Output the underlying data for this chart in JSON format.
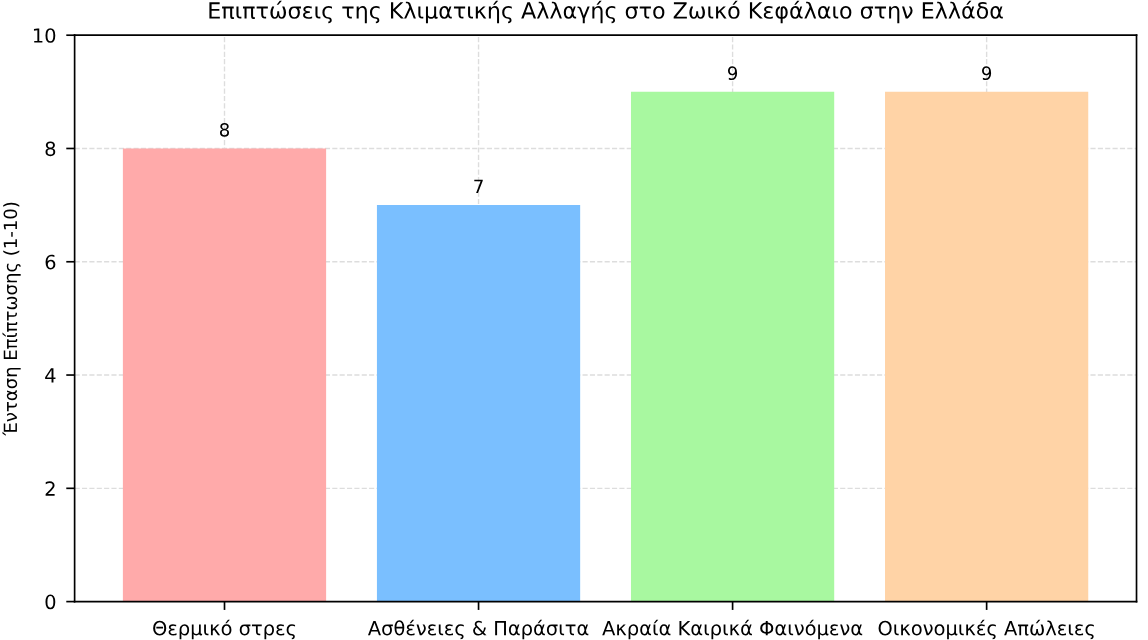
{
  "chart_data": {
    "type": "bar",
    "title": "Επιπτώσεις της Κλιματικής Αλλαγής στο Ζωικό Κεφάλαιο στην Ελλάδα",
    "ylabel": "Ένταση Επίπτωσης (1-10)",
    "categories": [
      "Θερμικό στρες",
      "Ασθένειες & Παράσιτα",
      "Ακραία Καιρικά Φαινόμενα",
      "Οικονομικές Απώλειες"
    ],
    "values": [
      8,
      7,
      9,
      9
    ],
    "colors": [
      "#ffaaaa",
      "#7abfff",
      "#a8f8a0",
      "#ffd3a6"
    ],
    "ylim": [
      0,
      10
    ],
    "yticks": [
      0,
      2,
      4,
      6,
      8,
      10
    ],
    "grid": true,
    "data_labels": true
  }
}
